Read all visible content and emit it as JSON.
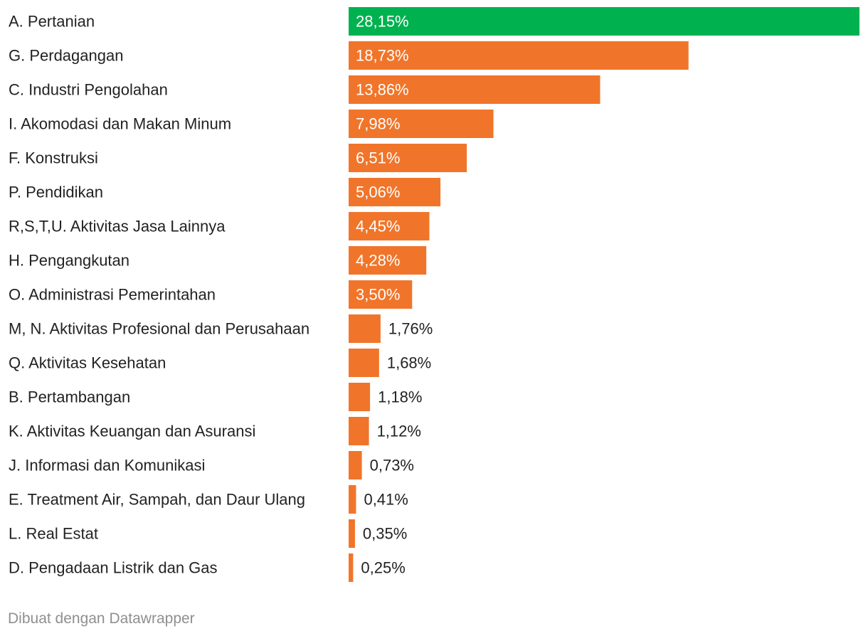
{
  "chart_data": {
    "type": "bar",
    "orientation": "horizontal",
    "categories": [
      "A. Pertanian",
      "G. Perdagangan",
      "C. Industri Pengolahan",
      "I. Akomodasi dan Makan Minum",
      "F. Konstruksi",
      "P. Pendidikan",
      "R,S,T,U. Aktivitas Jasa Lainnya",
      "H. Pengangkutan",
      "O. Administrasi Pemerintahan",
      "M, N. Aktivitas Profesional dan Perusahaan",
      "Q. Aktivitas Kesehatan",
      "B. Pertambangan",
      "K. Aktivitas Keuangan dan Asuransi",
      "J. Informasi dan Komunikasi",
      "E. Treatment Air, Sampah, dan Daur Ulang",
      "L. Real Estat",
      "D. Pengadaan Listrik dan Gas"
    ],
    "values": [
      28.15,
      18.73,
      13.86,
      7.98,
      6.51,
      5.06,
      4.45,
      4.28,
      3.5,
      1.76,
      1.68,
      1.18,
      1.12,
      0.73,
      0.41,
      0.35,
      0.25
    ],
    "value_labels": [
      "28,15%",
      "18,73%",
      "13,86%",
      "7,98%",
      "6,51%",
      "5,06%",
      "4,45%",
      "4,28%",
      "3,50%",
      "1,76%",
      "1,68%",
      "1,18%",
      "1,12%",
      "0,73%",
      "0,41%",
      "0,35%",
      "0,25%"
    ],
    "highlight_index": 0,
    "colors": {
      "highlight": "#00b14f",
      "bar": "#f0752a",
      "label_inside": "#ffffff",
      "label_outside": "#222222",
      "category_text": "#222222"
    },
    "xlim": [
      0,
      28.15
    ],
    "grid": false,
    "legend": "none"
  },
  "footer": {
    "credit": "Dibuat dengan Datawrapper"
  }
}
